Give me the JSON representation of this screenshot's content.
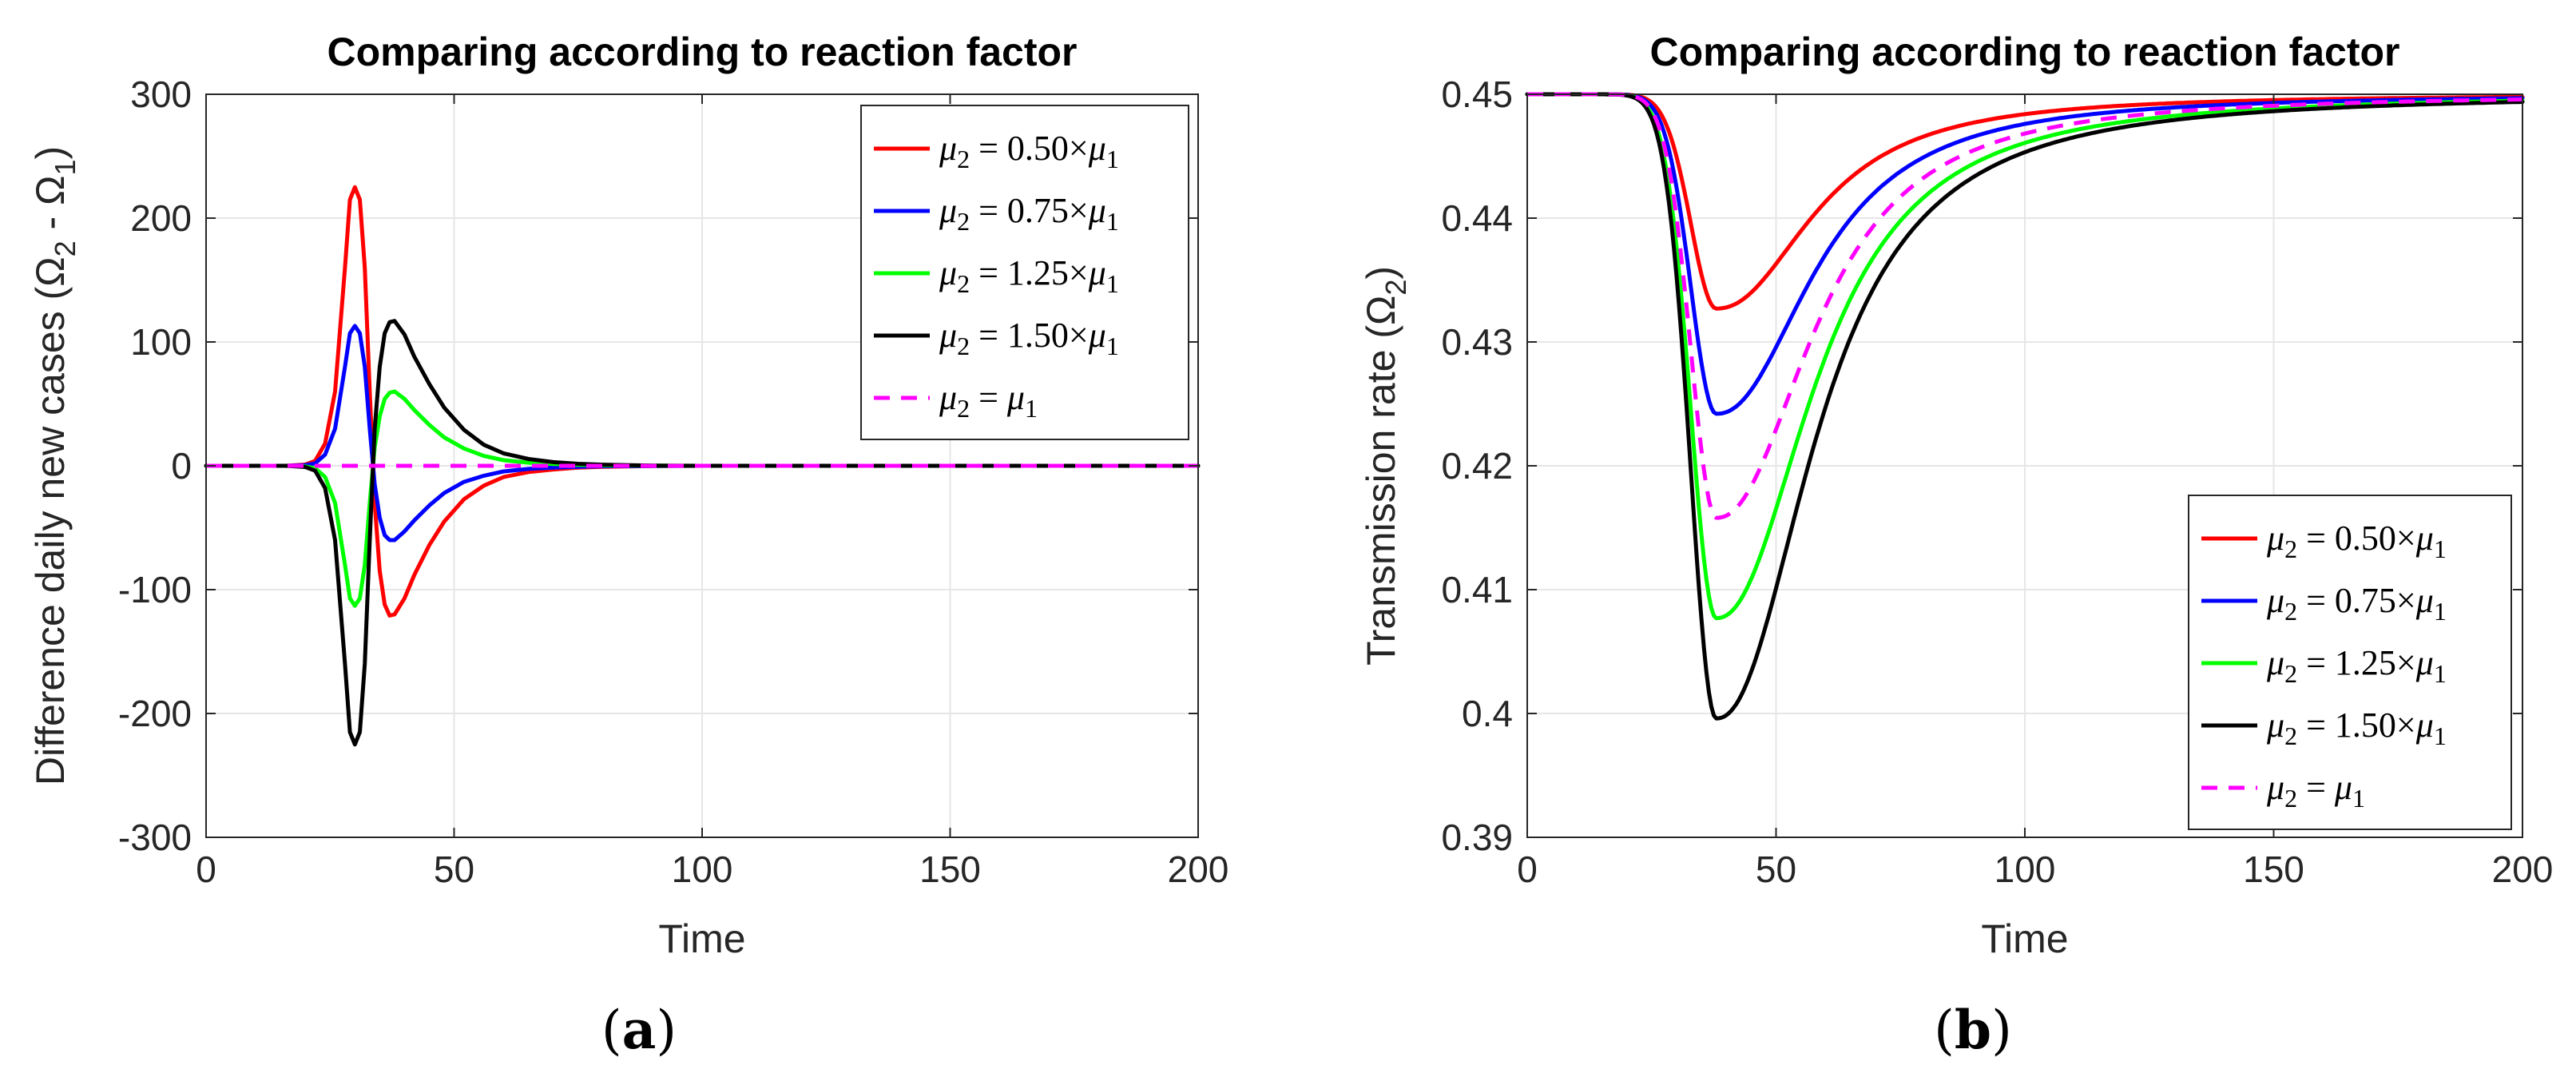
{
  "chart_data": [
    {
      "type": "line",
      "panel_label": "a",
      "title": "Comparing according to reaction factor",
      "xlabel": "Time",
      "ylabel": "Difference daily new cases (Ω",
      "ylabel_sub1": "2",
      "ylabel_mid": " - Ω",
      "ylabel_sub2": "1",
      "ylabel_end": ")",
      "xlim": [
        0,
        200
      ],
      "ylim": [
        -300,
        300
      ],
      "xticks": [
        0,
        50,
        100,
        150,
        200
      ],
      "xtick_labels": [
        "0",
        "50",
        "100",
        "150",
        "200"
      ],
      "yticks": [
        -300,
        -200,
        -100,
        0,
        100,
        200,
        300
      ],
      "ytick_labels": [
        "-300",
        "-200",
        "-100",
        "0",
        "100",
        "200",
        "300"
      ],
      "grid": true,
      "legend_position": "top-right",
      "series": [
        {
          "name": "μ2 = 0.50×μ1",
          "factor": "0.50",
          "color": "#ff0000",
          "dash": false,
          "x": [
            0,
            16,
            20,
            22,
            24,
            26,
            28,
            29,
            30,
            31,
            32,
            33,
            34,
            35,
            36,
            37,
            38,
            40,
            42,
            45,
            48,
            52,
            56,
            60,
            65,
            70,
            75,
            80,
            90,
            100,
            200
          ],
          "y": [
            0,
            0,
            1,
            4,
            18,
            60,
            160,
            215,
            225,
            215,
            160,
            60,
            -30,
            -85,
            -112,
            -121,
            -120,
            -107,
            -88,
            -64,
            -45,
            -27,
            -16,
            -9,
            -5,
            -3,
            -1.5,
            -0.8,
            -0.2,
            0,
            0
          ]
        },
        {
          "name": "μ2 = 0.75×μ1",
          "factor": "0.75",
          "color": "#0000ff",
          "dash": false,
          "x": [
            0,
            16,
            20,
            22,
            24,
            26,
            28,
            29,
            30,
            31,
            32,
            33,
            34,
            35,
            36,
            37,
            38,
            40,
            42,
            45,
            48,
            52,
            56,
            60,
            65,
            70,
            75,
            80,
            90,
            100,
            200
          ],
          "y": [
            0,
            0,
            0.5,
            2,
            9,
            30,
            80,
            107,
            113,
            107,
            80,
            30,
            -15,
            -42,
            -56,
            -60,
            -60,
            -53,
            -44,
            -32,
            -22,
            -13,
            -8,
            -4.5,
            -2.5,
            -1.5,
            -0.8,
            -0.4,
            -0.1,
            0,
            0
          ]
        },
        {
          "name": "μ2 = 1.25×μ1",
          "factor": "1.25",
          "color": "#00ff00",
          "dash": false,
          "x": [
            0,
            16,
            20,
            22,
            24,
            26,
            28,
            29,
            30,
            31,
            32,
            33,
            34,
            35,
            36,
            37,
            38,
            40,
            42,
            45,
            48,
            52,
            56,
            60,
            65,
            70,
            75,
            80,
            90,
            100,
            200
          ],
          "y": [
            0,
            0,
            -0.5,
            -2,
            -9,
            -30,
            -80,
            -107,
            -113,
            -107,
            -80,
            -30,
            15,
            40,
            54,
            59,
            60,
            54,
            45,
            33,
            23,
            14,
            8,
            4.5,
            2.5,
            1.5,
            0.8,
            0.4,
            0.1,
            0,
            0
          ]
        },
        {
          "name": "μ2 = 1.50×μ1",
          "factor": "1.50",
          "color": "#000000",
          "dash": false,
          "x": [
            0,
            16,
            20,
            22,
            24,
            26,
            28,
            29,
            30,
            31,
            32,
            33,
            34,
            35,
            36,
            37,
            38,
            40,
            42,
            45,
            48,
            52,
            56,
            60,
            65,
            70,
            75,
            80,
            90,
            100,
            200
          ],
          "y": [
            0,
            0,
            -1,
            -4,
            -18,
            -60,
            -160,
            -215,
            -225,
            -215,
            -160,
            -60,
            30,
            80,
            107,
            116,
            117,
            106,
            88,
            66,
            47,
            29,
            17,
            10,
            5.5,
            3,
            1.6,
            0.9,
            0.2,
            0,
            0
          ]
        },
        {
          "name": "μ2 = μ1",
          "factor": "",
          "color": "#ff00ff",
          "dash": true,
          "x": [
            0,
            200
          ],
          "y": [
            0,
            0
          ]
        }
      ]
    },
    {
      "type": "line",
      "panel_label": "b",
      "title": "Comparing according to reaction factor",
      "xlabel": "Time",
      "ylabel": "Transmission rate (Ω",
      "ylabel_sub1": "2",
      "ylabel_end": ")",
      "xlim": [
        0,
        200
      ],
      "ylim": [
        0.39,
        0.45
      ],
      "xticks": [
        0,
        50,
        100,
        150,
        200
      ],
      "xtick_labels": [
        "0",
        "50",
        "100",
        "150",
        "200"
      ],
      "yticks": [
        0.39,
        0.4,
        0.41,
        0.42,
        0.43,
        0.44,
        0.45
      ],
      "ytick_labels": [
        "0.39",
        "0.4",
        "0.41",
        "0.42",
        "0.43",
        "0.44",
        "0.45"
      ],
      "grid": true,
      "legend_position": "bottom-right",
      "series": [
        {
          "name": "μ2 = 0.50×μ1",
          "factor": "0.50",
          "color": "#ff0000",
          "dash": false,
          "min": 0.4327,
          "tmin": 38
        },
        {
          "name": "μ2 = 0.75×μ1",
          "factor": "0.75",
          "color": "#0000ff",
          "dash": false,
          "min": 0.4242,
          "tmin": 38
        },
        {
          "name": "μ2 = 1.25×μ1",
          "factor": "1.25",
          "color": "#00ff00",
          "dash": false,
          "min": 0.4077,
          "tmin": 38
        },
        {
          "name": "μ2 = 1.50×μ1",
          "factor": "1.50",
          "color": "#000000",
          "dash": false,
          "min": 0.3996,
          "tmin": 38
        },
        {
          "name": "μ2 = μ1",
          "factor": "",
          "color": "#ff00ff",
          "dash": true,
          "min": 0.4158,
          "tmin": 38
        }
      ]
    }
  ]
}
